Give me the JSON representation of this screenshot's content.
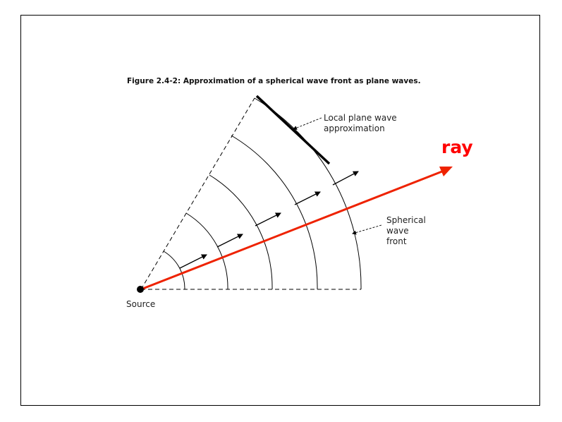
{
  "figure": {
    "title": "Figure 2.4-2: Approximation of a spherical wave front as plane waves.",
    "labels": {
      "local_plane_wave": [
        "Local plane wave",
        "approximation"
      ],
      "spherical_wave_front": [
        "Spherical",
        "wave",
        "front"
      ],
      "source": "Source",
      "ray": "ray"
    },
    "colors": {
      "ray": "#ee2200",
      "ray_label": "#ff0000",
      "lines": "#000000"
    }
  }
}
